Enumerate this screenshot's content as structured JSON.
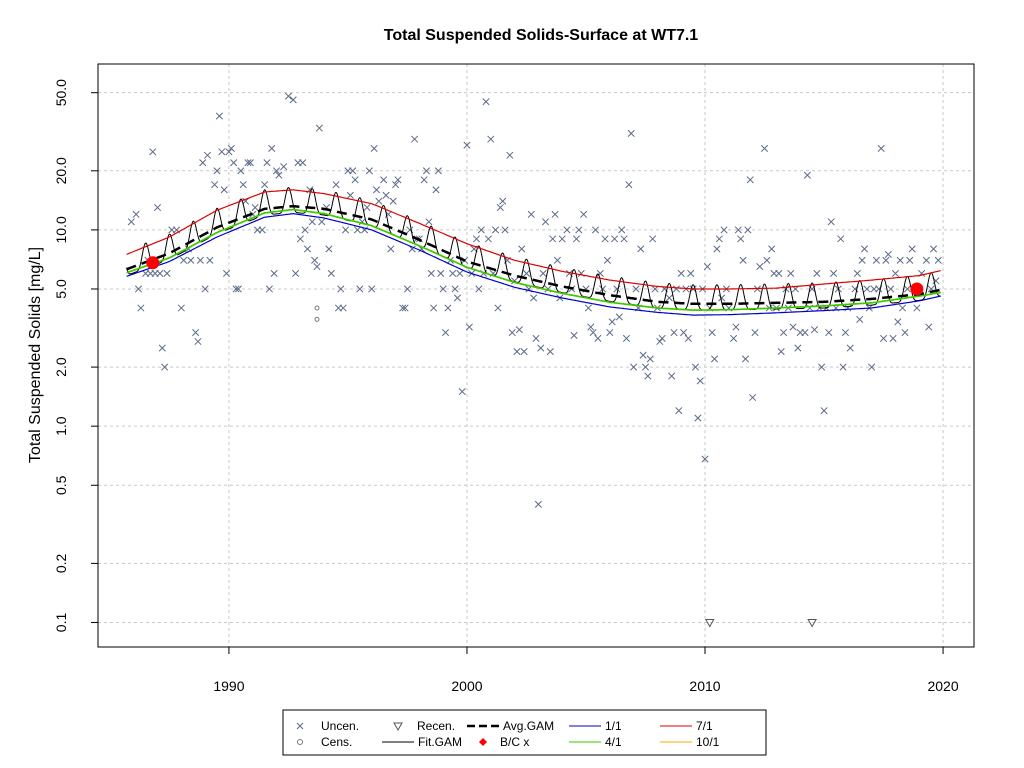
{
  "chart_data": {
    "type": "scatter",
    "title": "Total Suspended Solids-Surface at WT7.1",
    "ylabel": "Total Suspended Solids [mg/L]",
    "xlabel": "",
    "y_scale": "log",
    "xlim": [
      1984.5,
      2021.3
    ],
    "ylim": [
      0.075,
      70
    ],
    "x_ticks": [
      1990,
      2000,
      2010,
      2020
    ],
    "y_ticks": [
      0.1,
      0.2,
      0.5,
      1.0,
      2.0,
      5.0,
      10.0,
      20.0,
      50.0
    ],
    "y_tick_labels": [
      "0.1",
      "0.2",
      "0.5",
      "1.0",
      "2.0",
      "5.0",
      "10.0",
      "20.0",
      "50.0"
    ],
    "grid": true,
    "legend_placement": "bottom-center",
    "legend": [
      {
        "label": "Uncen.",
        "symbol": "x"
      },
      {
        "label": "Recen.",
        "symbol": "triangle-down"
      },
      {
        "label": "Avg.GAM",
        "symbol": "dashed-line"
      },
      {
        "label": "1/1",
        "symbol": "line"
      },
      {
        "label": "7/1",
        "symbol": "line"
      },
      {
        "label": "Cens.",
        "symbol": "circle"
      },
      {
        "label": "Fit.GAM",
        "symbol": "line"
      },
      {
        "label": "B/C x",
        "symbol": "diamond"
      },
      {
        "label": "4/1",
        "symbol": "line"
      },
      {
        "label": "10/1",
        "symbol": "line"
      }
    ],
    "colors": {
      "uncensored": "#5a6a88",
      "recensored": "#555555",
      "censored": "#777777",
      "avg_gam": "#000000",
      "fit_gam": "#000000",
      "baseline_current": "#ff0000",
      "d_1_1": "#0000cc",
      "d_4_1": "#33cc00",
      "d_7_1": "#dd0000",
      "d_10_1": "#ffa500",
      "grid": "#c8c8c8"
    },
    "series": [
      {
        "key": "avg",
        "x": [
          1985.7,
          1987.5,
          1989.5,
          1991.5,
          1992.7,
          1994,
          1996,
          1998,
          2000,
          2002,
          2004,
          2006,
          2008,
          2009.5,
          2011,
          2013,
          2015,
          2017,
          2019,
          2019.9
        ],
        "y": [
          6.3,
          7.6,
          10.3,
          12.8,
          13.2,
          12.8,
          11.3,
          8.9,
          6.9,
          5.85,
          5.15,
          4.65,
          4.3,
          4.2,
          4.2,
          4.25,
          4.3,
          4.45,
          4.7,
          4.95
        ]
      },
      {
        "key": "d_1_1",
        "x": [
          1985.7,
          1987.5,
          1989.5,
          1991.5,
          1992.7,
          1994,
          1996,
          1998,
          2000,
          2002,
          2004,
          2006,
          2008,
          2009.5,
          2011,
          2013,
          2015,
          2017,
          2019,
          2019.9
        ],
        "y": [
          5.8,
          6.9,
          9.2,
          11.6,
          12.1,
          11.5,
          10.0,
          7.9,
          6.1,
          5.1,
          4.5,
          4.05,
          3.8,
          3.68,
          3.7,
          3.78,
          3.88,
          4.0,
          4.35,
          4.6
        ]
      },
      {
        "key": "d_4_1",
        "x": [
          1985.7,
          1987.5,
          1989.5,
          1991.5,
          1992.7,
          1994,
          1996,
          1998,
          2000,
          2002,
          2004,
          2006,
          2008,
          2009.5,
          2011,
          2013,
          2015,
          2017,
          2019,
          2019.9
        ],
        "y": [
          6.05,
          7.2,
          9.7,
          12.2,
          12.7,
          12.1,
          10.5,
          8.3,
          6.45,
          5.4,
          4.75,
          4.28,
          4.0,
          3.9,
          3.92,
          4.0,
          4.1,
          4.25,
          4.6,
          4.8
        ]
      },
      {
        "key": "d_10_1",
        "x": [
          1985.7,
          1987.5,
          1989.5,
          1991.5,
          1992.7,
          1994,
          1996,
          1998,
          2000,
          2002,
          2004,
          2006,
          2008,
          2009.5,
          2011,
          2013,
          2015,
          2017,
          2019,
          2019.9
        ],
        "y": [
          6.05,
          7.2,
          9.7,
          12.2,
          12.7,
          12.1,
          10.5,
          8.3,
          6.45,
          5.4,
          4.75,
          4.28,
          4.0,
          3.9,
          3.92,
          4.0,
          4.1,
          4.25,
          4.6,
          4.8
        ]
      },
      {
        "key": "d_7_1",
        "x": [
          1985.7,
          1987.5,
          1989.5,
          1991.5,
          1992.7,
          1994,
          1996,
          1998,
          2000,
          2002,
          2004,
          2006,
          2008,
          2009.5,
          2011,
          2013,
          2015,
          2017,
          2019,
          2019.9
        ],
        "y": [
          7.5,
          9.2,
          12.6,
          15.6,
          16.0,
          15.3,
          13.6,
          10.8,
          8.5,
          7.0,
          6.15,
          5.55,
          5.15,
          5.0,
          5.0,
          5.05,
          5.3,
          5.55,
          5.85,
          6.2
        ]
      }
    ],
    "fit_gam": {
      "x_start": 1985.7,
      "x_end": 2019.9,
      "seasonal_peak_multiplier": 1.25,
      "seasonal_trough_multiplier": 0.93
    },
    "baseline_current": [
      {
        "x": 1986.8,
        "y": 6.8
      },
      {
        "x": 2018.9,
        "y": 5.0
      }
    ],
    "uncensored_points": [
      [
        1985.9,
        11
      ],
      [
        1986.1,
        12
      ],
      [
        1986.2,
        5
      ],
      [
        1986.3,
        4
      ],
      [
        1986.5,
        6
      ],
      [
        1986.6,
        7
      ],
      [
        1986.7,
        6
      ],
      [
        1986.8,
        25
      ],
      [
        1986.9,
        6
      ],
      [
        1987.0,
        13
      ],
      [
        1987.1,
        6
      ],
      [
        1987.2,
        2.5
      ],
      [
        1987.3,
        2
      ],
      [
        1987.4,
        6
      ],
      [
        1987.6,
        10
      ],
      [
        1987.8,
        10
      ],
      [
        1988.0,
        4
      ],
      [
        1988.1,
        7
      ],
      [
        1988.3,
        8
      ],
      [
        1988.4,
        7
      ],
      [
        1988.6,
        3
      ],
      [
        1988.7,
        2.7
      ],
      [
        1988.8,
        7
      ],
      [
        1988.9,
        22
      ],
      [
        1989.0,
        5
      ],
      [
        1989.1,
        24
      ],
      [
        1989.2,
        7
      ],
      [
        1989.4,
        17
      ],
      [
        1989.5,
        20
      ],
      [
        1989.6,
        38
      ],
      [
        1989.7,
        25
      ],
      [
        1989.8,
        16
      ],
      [
        1989.9,
        6
      ],
      [
        1990.0,
        25
      ],
      [
        1990.1,
        26
      ],
      [
        1990.2,
        22
      ],
      [
        1990.3,
        5
      ],
      [
        1990.4,
        5
      ],
      [
        1990.5,
        20
      ],
      [
        1990.6,
        17
      ],
      [
        1990.7,
        14
      ],
      [
        1990.8,
        22
      ],
      [
        1990.9,
        22
      ],
      [
        1991.0,
        12
      ],
      [
        1991.1,
        13
      ],
      [
        1991.2,
        10
      ],
      [
        1991.4,
        10
      ],
      [
        1991.5,
        17
      ],
      [
        1991.6,
        22
      ],
      [
        1991.7,
        5
      ],
      [
        1991.8,
        26
      ],
      [
        1991.9,
        6
      ],
      [
        1992.0,
        20
      ],
      [
        1992.1,
        19
      ],
      [
        1992.3,
        21
      ],
      [
        1992.5,
        48
      ],
      [
        1992.7,
        46
      ],
      [
        1992.8,
        6
      ],
      [
        1992.9,
        22
      ],
      [
        1993.0,
        9
      ],
      [
        1993.1,
        22
      ],
      [
        1993.2,
        10
      ],
      [
        1993.3,
        8
      ],
      [
        1993.4,
        16
      ],
      [
        1993.5,
        11
      ],
      [
        1993.6,
        7
      ],
      [
        1993.7,
        6.5
      ],
      [
        1993.8,
        33
      ],
      [
        1993.9,
        11
      ],
      [
        1994.1,
        13
      ],
      [
        1994.2,
        8
      ],
      [
        1994.3,
        6
      ],
      [
        1994.5,
        17
      ],
      [
        1994.6,
        4
      ],
      [
        1994.7,
        5
      ],
      [
        1994.8,
        4
      ],
      [
        1994.9,
        10
      ],
      [
        1995.0,
        20
      ],
      [
        1995.1,
        15
      ],
      [
        1995.2,
        20
      ],
      [
        1995.3,
        18
      ],
      [
        1995.4,
        10
      ],
      [
        1995.5,
        5
      ],
      [
        1995.6,
        11
      ],
      [
        1995.7,
        10
      ],
      [
        1995.8,
        13
      ],
      [
        1995.9,
        20
      ],
      [
        1996.0,
        5
      ],
      [
        1996.1,
        26
      ],
      [
        1996.2,
        16
      ],
      [
        1996.3,
        14
      ],
      [
        1996.5,
        18
      ],
      [
        1996.6,
        15
      ],
      [
        1996.7,
        12
      ],
      [
        1996.8,
        8
      ],
      [
        1996.9,
        14
      ],
      [
        1997.0,
        17
      ],
      [
        1997.1,
        18
      ],
      [
        1997.3,
        4
      ],
      [
        1997.4,
        4
      ],
      [
        1997.5,
        5
      ],
      [
        1997.6,
        10
      ],
      [
        1997.7,
        8
      ],
      [
        1997.8,
        29
      ],
      [
        1997.9,
        9
      ],
      [
        1998.0,
        9
      ],
      [
        1998.1,
        8
      ],
      [
        1998.2,
        18
      ],
      [
        1998.3,
        20
      ],
      [
        1998.4,
        11
      ],
      [
        1998.5,
        6
      ],
      [
        1998.6,
        4
      ],
      [
        1998.7,
        16
      ],
      [
        1998.8,
        20
      ],
      [
        1998.9,
        6
      ],
      [
        1999.0,
        5
      ],
      [
        1999.1,
        3
      ],
      [
        1999.2,
        4
      ],
      [
        1999.3,
        7
      ],
      [
        1999.4,
        6
      ],
      [
        1999.5,
        5
      ],
      [
        1999.6,
        4.5
      ],
      [
        1999.7,
        6
      ],
      [
        1999.8,
        1.5
      ],
      [
        1999.9,
        7
      ],
      [
        2000.0,
        27
      ],
      [
        2000.1,
        3.2
      ],
      [
        2000.2,
        6
      ],
      [
        2000.3,
        8
      ],
      [
        2000.4,
        9
      ],
      [
        2000.5,
        5
      ],
      [
        2000.6,
        10
      ],
      [
        2000.7,
        6
      ],
      [
        2000.8,
        45
      ],
      [
        2000.9,
        9
      ],
      [
        2001.0,
        29
      ],
      [
        2001.1,
        6
      ],
      [
        2001.2,
        10
      ],
      [
        2001.3,
        4
      ],
      [
        2001.4,
        13
      ],
      [
        2001.5,
        14
      ],
      [
        2001.6,
        10
      ],
      [
        2001.7,
        7
      ],
      [
        2001.8,
        24
      ],
      [
        2001.9,
        3
      ],
      [
        2002.0,
        5.5
      ],
      [
        2002.1,
        2.4
      ],
      [
        2002.2,
        3.1
      ],
      [
        2002.3,
        8
      ],
      [
        2002.4,
        2.4
      ],
      [
        2002.5,
        6
      ],
      [
        2002.6,
        5
      ],
      [
        2002.7,
        12
      ],
      [
        2002.8,
        4.5
      ],
      [
        2002.9,
        2.8
      ],
      [
        2003.0,
        0.4
      ],
      [
        2003.1,
        2.5
      ],
      [
        2003.2,
        6
      ],
      [
        2003.3,
        11
      ],
      [
        2003.4,
        5
      ],
      [
        2003.5,
        2.4
      ],
      [
        2003.6,
        9
      ],
      [
        2003.7,
        12
      ],
      [
        2003.8,
        7
      ],
      [
        2003.9,
        4.5
      ],
      [
        2004.0,
        9
      ],
      [
        2004.2,
        10
      ],
      [
        2004.3,
        6
      ],
      [
        2004.4,
        5
      ],
      [
        2004.5,
        2.9
      ],
      [
        2004.6,
        9
      ],
      [
        2004.7,
        10
      ],
      [
        2004.8,
        6
      ],
      [
        2004.9,
        12
      ],
      [
        2005.0,
        5
      ],
      [
        2005.1,
        4
      ],
      [
        2005.2,
        3.2
      ],
      [
        2005.3,
        3
      ],
      [
        2005.4,
        10
      ],
      [
        2005.5,
        2.8
      ],
      [
        2005.6,
        6
      ],
      [
        2005.7,
        5
      ],
      [
        2005.8,
        9
      ],
      [
        2005.9,
        7
      ],
      [
        2006.0,
        3
      ],
      [
        2006.1,
        3.4
      ],
      [
        2006.2,
        9
      ],
      [
        2006.3,
        5
      ],
      [
        2006.4,
        3.6
      ],
      [
        2006.5,
        10
      ],
      [
        2006.6,
        9
      ],
      [
        2006.7,
        2.8
      ],
      [
        2006.8,
        17
      ],
      [
        2006.9,
        31
      ],
      [
        2007.0,
        2
      ],
      [
        2007.1,
        5
      ],
      [
        2007.2,
        4
      ],
      [
        2007.3,
        8
      ],
      [
        2007.4,
        2.3
      ],
      [
        2007.5,
        2
      ],
      [
        2007.6,
        1.8
      ],
      [
        2007.7,
        2.2
      ],
      [
        2007.8,
        9
      ],
      [
        2007.9,
        5
      ],
      [
        2008.0,
        4
      ],
      [
        2008.1,
        2.7
      ],
      [
        2008.2,
        2.8
      ],
      [
        2008.3,
        5
      ],
      [
        2008.5,
        4.5
      ],
      [
        2008.6,
        1.8
      ],
      [
        2008.7,
        3
      ],
      [
        2008.8,
        5
      ],
      [
        2008.9,
        1.2
      ],
      [
        2009.0,
        6
      ],
      [
        2009.1,
        3
      ],
      [
        2009.2,
        5
      ],
      [
        2009.3,
        2.8
      ],
      [
        2009.4,
        6
      ],
      [
        2009.5,
        5
      ],
      [
        2009.6,
        2
      ],
      [
        2009.7,
        1.1
      ],
      [
        2009.8,
        1.7
      ],
      [
        2009.9,
        5
      ],
      [
        2010.0,
        0.68
      ],
      [
        2010.1,
        6.5
      ],
      [
        2010.2,
        4
      ],
      [
        2010.3,
        3
      ],
      [
        2010.4,
        2.2
      ],
      [
        2010.5,
        8
      ],
      [
        2010.6,
        9
      ],
      [
        2010.7,
        4.5
      ],
      [
        2010.8,
        10
      ],
      [
        2010.9,
        5
      ],
      [
        2011.0,
        4
      ],
      [
        2011.2,
        2.8
      ],
      [
        2011.3,
        3.2
      ],
      [
        2011.4,
        10
      ],
      [
        2011.5,
        9
      ],
      [
        2011.6,
        7
      ],
      [
        2011.7,
        2.2
      ],
      [
        2011.8,
        10
      ],
      [
        2011.9,
        18
      ],
      [
        2012.0,
        1.4
      ],
      [
        2012.1,
        3
      ],
      [
        2012.2,
        5
      ],
      [
        2012.3,
        6.5
      ],
      [
        2012.5,
        26
      ],
      [
        2012.6,
        7
      ],
      [
        2012.7,
        4
      ],
      [
        2012.8,
        8
      ],
      [
        2012.9,
        6
      ],
      [
        2013.0,
        4
      ],
      [
        2013.1,
        6
      ],
      [
        2013.2,
        2.4
      ],
      [
        2013.3,
        3
      ],
      [
        2013.4,
        5
      ],
      [
        2013.5,
        4
      ],
      [
        2013.6,
        6
      ],
      [
        2013.7,
        3.2
      ],
      [
        2013.8,
        5
      ],
      [
        2013.9,
        2.5
      ],
      [
        2014.0,
        3
      ],
      [
        2014.2,
        3
      ],
      [
        2014.3,
        19
      ],
      [
        2014.4,
        4
      ],
      [
        2014.5,
        5
      ],
      [
        2014.6,
        3.1
      ],
      [
        2014.7,
        6
      ],
      [
        2014.8,
        4
      ],
      [
        2014.9,
        2
      ],
      [
        2015.0,
        1.2
      ],
      [
        2015.1,
        4
      ],
      [
        2015.2,
        3
      ],
      [
        2015.3,
        11
      ],
      [
        2015.4,
        6
      ],
      [
        2015.5,
        4
      ],
      [
        2015.6,
        5
      ],
      [
        2015.7,
        9
      ],
      [
        2015.8,
        2
      ],
      [
        2015.9,
        3
      ],
      [
        2016.0,
        4
      ],
      [
        2016.1,
        2.5
      ],
      [
        2016.3,
        5
      ],
      [
        2016.4,
        6
      ],
      [
        2016.5,
        3.5
      ],
      [
        2016.6,
        7
      ],
      [
        2016.7,
        8
      ],
      [
        2016.8,
        5
      ],
      [
        2016.9,
        4
      ],
      [
        2017.0,
        2
      ],
      [
        2017.1,
        5
      ],
      [
        2017.2,
        7
      ],
      [
        2017.3,
        5
      ],
      [
        2017.4,
        26
      ],
      [
        2017.5,
        2.8
      ],
      [
        2017.6,
        7
      ],
      [
        2017.7,
        7.5
      ],
      [
        2017.8,
        5
      ],
      [
        2017.9,
        2.8
      ],
      [
        2018.0,
        6
      ],
      [
        2018.1,
        3.4
      ],
      [
        2018.2,
        7
      ],
      [
        2018.3,
        4
      ],
      [
        2018.4,
        3
      ],
      [
        2018.5,
        5
      ],
      [
        2018.6,
        7
      ],
      [
        2018.7,
        8
      ],
      [
        2018.9,
        4
      ],
      [
        2019.1,
        6
      ],
      [
        2019.3,
        7
      ],
      [
        2019.4,
        3.2
      ],
      [
        2019.5,
        5
      ],
      [
        2019.6,
        8
      ],
      [
        2019.7,
        5.5
      ],
      [
        2019.8,
        7
      ]
    ],
    "censored_points": [
      [
        1993.7,
        3.5
      ],
      [
        1993.7,
        4
      ]
    ],
    "recensored_points": [
      [
        2010.2,
        0.1
      ],
      [
        2014.5,
        0.1
      ]
    ]
  }
}
